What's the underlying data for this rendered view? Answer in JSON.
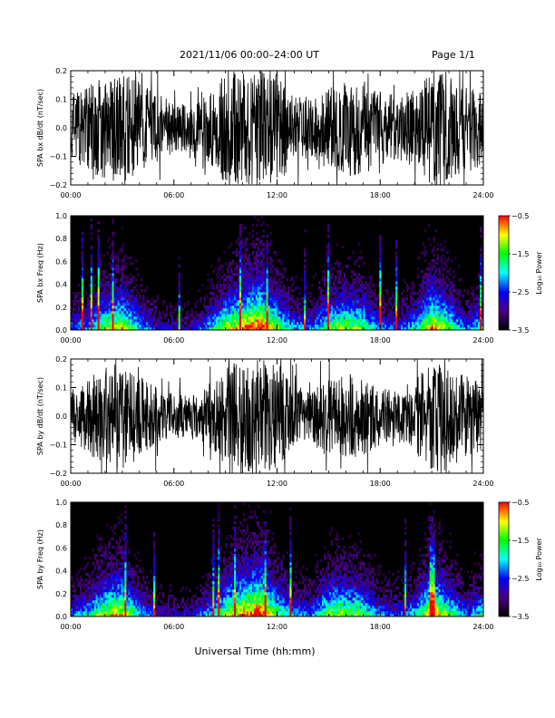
{
  "header": {
    "title": "2021/11/06  00:00–24:00 UT",
    "page": "Page 1/1"
  },
  "footer": {
    "xlabel": "Universal Time (hh:mm)"
  },
  "colors": {
    "waveform": "#000000",
    "spectrogram_background": "#000000",
    "colormap": [
      "#000000",
      "#4b0082",
      "#0000ff",
      "#00ffff",
      "#00ff00",
      "#ffff00",
      "#ff0000"
    ]
  },
  "chart_data": [
    {
      "type": "line",
      "panel_id": "bx-waveform",
      "ylabel": "SPA bx dB/dt (nT/sec)",
      "xlim": [
        0,
        24
      ],
      "ylim": [
        -0.2,
        0.2
      ],
      "x_tick_labels": [
        "00:00",
        "06:00",
        "12:00",
        "18:00",
        "24:00"
      ],
      "y_tick_labels": [
        "−0.2",
        "−0.1",
        "0.0",
        "0.1",
        "0.2"
      ],
      "grid": false,
      "x_unit": "hours UT",
      "envelope": {
        "x": [
          0,
          1,
          2,
          3,
          4,
          5,
          6,
          7,
          8,
          9,
          10,
          11,
          12,
          13,
          14,
          15,
          16,
          17,
          18,
          19,
          20,
          21,
          22,
          23,
          24
        ],
        "amplitude": [
          0.12,
          0.15,
          0.19,
          0.19,
          0.16,
          0.12,
          0.09,
          0.08,
          0.12,
          0.2,
          0.2,
          0.2,
          0.2,
          0.13,
          0.1,
          0.15,
          0.17,
          0.17,
          0.13,
          0.11,
          0.14,
          0.2,
          0.2,
          0.16,
          0.14
        ]
      }
    },
    {
      "type": "heatmap",
      "panel_id": "bx-spectrogram",
      "ylabel": "SPA bx Freq (Hz)",
      "xlim": [
        0,
        24
      ],
      "ylim": [
        0,
        1.0
      ],
      "x_tick_labels": [
        "00:00",
        "06:00",
        "12:00",
        "18:00",
        "24:00"
      ],
      "y_tick_labels": [
        "0.0",
        "0.2",
        "0.4",
        "0.6",
        "0.8",
        "1.0"
      ],
      "colorbar": {
        "label": "Log₁₀ Power",
        "range": [
          -3.5,
          -0.5
        ],
        "tick_labels": [
          "−0.5",
          "−1.5",
          "−2.5",
          "−3.5"
        ]
      },
      "activity": {
        "x": [
          0,
          1,
          2,
          3,
          4,
          5,
          6,
          7,
          8,
          9,
          10,
          11,
          12,
          13,
          14,
          15,
          16,
          17,
          18,
          19,
          20,
          21,
          22,
          23,
          24
        ],
        "intensity": [
          0.45,
          0.5,
          0.75,
          0.8,
          0.55,
          0.35,
          0.3,
          0.3,
          0.5,
          0.75,
          0.9,
          1.0,
          0.75,
          0.5,
          0.45,
          0.7,
          0.75,
          0.7,
          0.45,
          0.4,
          0.55,
          0.9,
          0.7,
          0.45,
          0.6
        ]
      }
    },
    {
      "type": "line",
      "panel_id": "by-waveform",
      "ylabel": "SPA by dB/dt (nT/sec)",
      "xlim": [
        0,
        24
      ],
      "ylim": [
        -0.2,
        0.2
      ],
      "x_tick_labels": [
        "00:00",
        "06:00",
        "12:00",
        "18:00",
        "24:00"
      ],
      "y_tick_labels": [
        "−0.2",
        "−0.1",
        "0.0",
        "0.1",
        "0.2"
      ],
      "grid": false,
      "x_unit": "hours UT",
      "envelope": {
        "x": [
          0,
          1,
          2,
          3,
          4,
          5,
          6,
          7,
          8,
          9,
          10,
          11,
          12,
          13,
          14,
          15,
          16,
          17,
          18,
          19,
          20,
          21,
          22,
          23,
          24
        ],
        "amplitude": [
          0.1,
          0.14,
          0.18,
          0.19,
          0.14,
          0.1,
          0.08,
          0.07,
          0.11,
          0.17,
          0.2,
          0.2,
          0.19,
          0.11,
          0.09,
          0.13,
          0.15,
          0.14,
          0.1,
          0.09,
          0.13,
          0.2,
          0.2,
          0.14,
          0.12
        ]
      }
    },
    {
      "type": "heatmap",
      "panel_id": "by-spectrogram",
      "ylabel": "SPA by Freq (Hz)",
      "xlim": [
        0,
        24
      ],
      "ylim": [
        0,
        1.0
      ],
      "x_tick_labels": [
        "00:00",
        "06:00",
        "12:00",
        "18:00",
        "24:00"
      ],
      "y_tick_labels": [
        "0.0",
        "0.2",
        "0.4",
        "0.6",
        "0.8",
        "1.0"
      ],
      "colorbar": {
        "label": "Log₁₀ Power",
        "range": [
          -3.5,
          -0.5
        ],
        "tick_labels": [
          "−0.5",
          "−1.5",
          "−2.5",
          "−3.5"
        ]
      },
      "activity": {
        "x": [
          0,
          1,
          2,
          3,
          4,
          5,
          6,
          7,
          8,
          9,
          10,
          11,
          12,
          13,
          14,
          15,
          16,
          17,
          18,
          19,
          20,
          21,
          22,
          23,
          24
        ],
        "intensity": [
          0.45,
          0.55,
          0.8,
          0.85,
          0.55,
          0.35,
          0.3,
          0.3,
          0.5,
          0.75,
          0.9,
          1.0,
          0.7,
          0.5,
          0.45,
          0.75,
          0.75,
          0.7,
          0.45,
          0.4,
          0.55,
          0.9,
          0.7,
          0.45,
          0.6
        ]
      }
    }
  ]
}
